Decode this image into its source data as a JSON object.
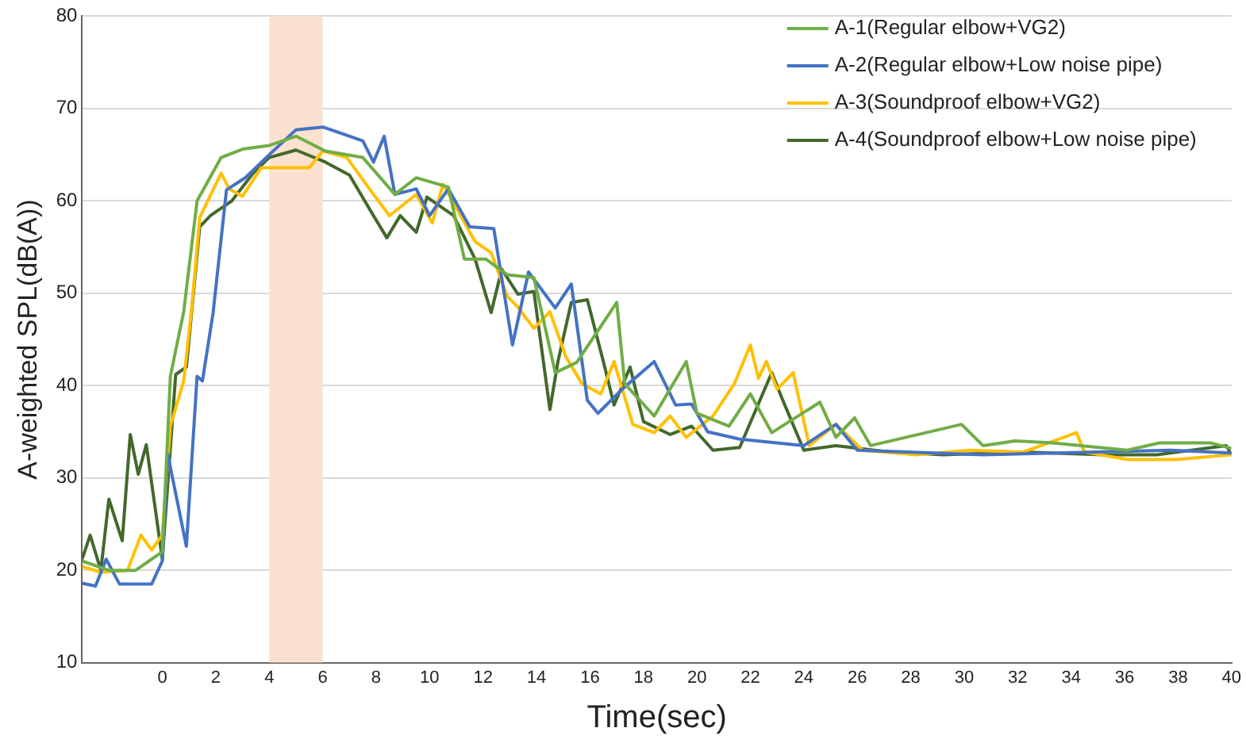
{
  "chart_data": {
    "type": "line",
    "xlabel": "Time(sec)",
    "ylabel": "A-weighted SPL(dB(A))",
    "xlim": [
      -3,
      40
    ],
    "xticks": [
      0,
      2,
      4,
      6,
      8,
      10,
      12,
      14,
      16,
      18,
      20,
      22,
      24,
      26,
      28,
      30,
      32,
      34,
      36,
      38,
      40
    ],
    "ylim": [
      10,
      80
    ],
    "yticks": [
      10,
      20,
      30,
      40,
      50,
      60,
      70,
      80
    ],
    "grid": "y",
    "legend": "top right",
    "marker": "none",
    "line_style": "solid",
    "bands": [
      {
        "axis": "x",
        "from": 4,
        "to": 6,
        "color": "#fbe2d0"
      }
    ],
    "series": [
      {
        "name": "A-1(Regular elbow+VG2)",
        "color": "#70ad47",
        "x": [
          -3,
          -2,
          -1,
          -0.5,
          0,
          0.3,
          0.8,
          1.3,
          2.2,
          3,
          4,
          5,
          6.1,
          7.5,
          8.7,
          9.5,
          10.7,
          11.3,
          12.1,
          12.9,
          13.9,
          14.7,
          15.5,
          17,
          17.3,
          18.4,
          19.6,
          20,
          21.2,
          22,
          22.8,
          24.6,
          25.2,
          25.9,
          26.5,
          29.9,
          30.7,
          31.9,
          33.3,
          36.1,
          37.3,
          39.2,
          40
        ],
        "values": [
          21,
          20,
          20,
          21,
          22,
          41,
          48,
          60,
          64.7,
          65.6,
          66,
          67,
          65.4,
          64.7,
          60.7,
          62.5,
          61.5,
          53.7,
          53.7,
          52,
          51.7,
          41.4,
          42.5,
          49,
          40.2,
          36.7,
          42.6,
          37,
          35.6,
          39.1,
          34.9,
          38.2,
          34.4,
          36.5,
          33.5,
          35.8,
          33.5,
          34,
          33.8,
          33,
          33.8,
          33.8,
          33.2
        ]
      },
      {
        "name": "A-2(Regular elbow+Low noise pipe)",
        "color": "#4472c4",
        "x": [
          -3,
          -2.5,
          -2.1,
          -1.6,
          -0.4,
          0,
          0.2,
          0.9,
          1.3,
          1.5,
          1.9,
          2.4,
          3.1,
          4,
          5,
          6,
          6.5,
          7.5,
          7.9,
          8.3,
          8.7,
          9.5,
          10,
          10.7,
          11.5,
          12.4,
          13.1,
          13.7,
          14.7,
          15.3,
          15.9,
          16.3,
          17.2,
          18.4,
          19.2,
          19.8,
          20.4,
          21.6,
          24,
          25.2,
          26,
          30.7,
          37.7,
          40
        ],
        "values": [
          18.6,
          18.3,
          21.2,
          18.5,
          18.5,
          21,
          32.6,
          22.6,
          41,
          40.5,
          47.9,
          61.2,
          62.5,
          65,
          67.7,
          68,
          67.5,
          66.5,
          64.2,
          67,
          60.7,
          61.3,
          58.4,
          61.3,
          57.2,
          57,
          44.4,
          52.3,
          48.4,
          51,
          38.4,
          37,
          39.6,
          42.6,
          37.9,
          38,
          35,
          34.2,
          33.5,
          35.8,
          33,
          32.5,
          33,
          32.7
        ]
      },
      {
        "name": "A-3(Soundproof elbow+VG2)",
        "color": "#ffc000",
        "x": [
          -3,
          -2.3,
          -1.3,
          -0.8,
          -0.4,
          0,
          0.3,
          0.8,
          1.1,
          1.4,
          2.2,
          2.5,
          3,
          3.7,
          4.5,
          5.5,
          6,
          6.9,
          7.9,
          8.5,
          9.5,
          10.1,
          10.5,
          11.7,
          12.3,
          12.9,
          13.3,
          13.9,
          14.5,
          15.1,
          15.7,
          16.4,
          16.9,
          17.6,
          18.4,
          19,
          19.6,
          20.6,
          21.4,
          22,
          22.3,
          22.6,
          23,
          23.6,
          24.2,
          25.2,
          26.2,
          28.2,
          30.2,
          32.2,
          34.2,
          34.5,
          36.1,
          37.9,
          40
        ],
        "values": [
          20.4,
          19.8,
          20,
          23.8,
          22.2,
          23.8,
          35.6,
          40.5,
          48.4,
          58.2,
          63,
          61.3,
          60.5,
          63.6,
          63.6,
          63.6,
          65.4,
          64.7,
          60.7,
          58.4,
          60.7,
          57.6,
          61.8,
          55.6,
          54.4,
          49.7,
          48.5,
          46.2,
          48,
          43.1,
          40.2,
          39.1,
          42.6,
          35.8,
          34.9,
          36.7,
          34.4,
          36.7,
          40.2,
          44.4,
          40.8,
          42.6,
          39.6,
          41.4,
          33.5,
          35.8,
          33,
          32.5,
          33,
          32.8,
          34.9,
          32.8,
          32,
          32,
          32.5
        ]
      },
      {
        "name": "A-4(Soundproof elbow+Low noise pipe)",
        "color": "#43682b",
        "x": [
          -3,
          -2.7,
          -2.3,
          -2,
          -1.5,
          -1.2,
          -0.9,
          -0.6,
          0,
          0.5,
          0.9,
          1.4,
          1.8,
          2.6,
          3.4,
          4,
          5,
          6.1,
          7,
          7.9,
          8.4,
          8.9,
          9.5,
          9.9,
          10.9,
          11.7,
          12.3,
          12.7,
          13.3,
          13.9,
          14.5,
          14.8,
          15.3,
          15.9,
          16.5,
          16.9,
          17.5,
          18,
          19,
          19.8,
          20.6,
          21.6,
          22.8,
          23.2,
          24,
          25.2,
          27.2,
          29.2,
          32.2,
          35.2,
          37.2,
          39.8,
          40
        ],
        "values": [
          21.2,
          23.8,
          20,
          27.7,
          23.2,
          34.7,
          30.4,
          33.6,
          21.2,
          41.2,
          42,
          57.2,
          58.4,
          60,
          63,
          64.7,
          65.5,
          64.2,
          62.8,
          58.4,
          56,
          58.4,
          56.6,
          60.4,
          58.4,
          53.7,
          47.9,
          52.6,
          49.9,
          50.2,
          37.4,
          42.6,
          49,
          49.3,
          42.6,
          37.9,
          42,
          36.1,
          34.7,
          35.6,
          33,
          33.3,
          41.4,
          38.5,
          33,
          33.5,
          32.8,
          32.5,
          32.8,
          32.5,
          32.5,
          33.5,
          32.5
        ]
      }
    ]
  }
}
